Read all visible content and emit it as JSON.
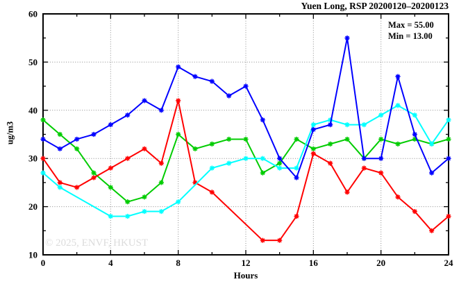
{
  "title": "Yuen Long, RSP 20200120–20200123",
  "stats": {
    "max_label": "Max = 55.00",
    "min_label": "Min = 13.00"
  },
  "watermark": "© 2025, ENVF, HKUST",
  "chart_data": {
    "type": "line",
    "title": "Yuen Long, RSP 20200120–20200123",
    "xlabel": "Hours",
    "ylabel": "ug/m3",
    "xlim": [
      0,
      24
    ],
    "ylim": [
      10,
      60
    ],
    "xticks": [
      0,
      4,
      8,
      12,
      16,
      20,
      24
    ],
    "x_minor_step": 2,
    "yticks": [
      10,
      20,
      30,
      40,
      50,
      60
    ],
    "y_minor_step": 5,
    "grid_x": [
      4,
      8,
      12,
      16,
      20
    ],
    "grid_y": [
      20,
      30,
      40,
      50
    ],
    "grid": true,
    "legend_position": "top-right-inside",
    "annotations": [
      "Max = 55.00",
      "Min = 13.00"
    ],
    "x": [
      0,
      1,
      2,
      3,
      4,
      5,
      6,
      7,
      8,
      9,
      10,
      11,
      12,
      13,
      14,
      15,
      16,
      17,
      18,
      19,
      20,
      21,
      22,
      23,
      24
    ],
    "series": [
      {
        "name": "green",
        "color": "#00cc00",
        "values": [
          38,
          35,
          32,
          27,
          24,
          21,
          22,
          25,
          35,
          32,
          33,
          34,
          34,
          27,
          29,
          34,
          32,
          33,
          34,
          30,
          34,
          33,
          34,
          33,
          34
        ]
      },
      {
        "name": "red",
        "color": "#ff0000",
        "values": [
          30,
          25,
          24,
          26,
          28,
          30,
          32,
          29,
          42,
          25,
          23,
          null,
          null,
          13,
          13,
          18,
          31,
          29,
          23,
          28,
          27,
          22,
          19,
          15,
          18
        ]
      },
      {
        "name": "cyan",
        "color": "#00ffff",
        "values": [
          27,
          24,
          null,
          null,
          18,
          18,
          19,
          19,
          21,
          null,
          28,
          29,
          30,
          30,
          28,
          28,
          37,
          38,
          37,
          37,
          39,
          41,
          39,
          33,
          38
        ]
      },
      {
        "name": "blue",
        "color": "#0000ff",
        "values": [
          34,
          32,
          34,
          35,
          37,
          39,
          42,
          40,
          49,
          47,
          46,
          43,
          45,
          38,
          30,
          26,
          36,
          37,
          55,
          30,
          30,
          47,
          35,
          27,
          30
        ]
      }
    ]
  }
}
